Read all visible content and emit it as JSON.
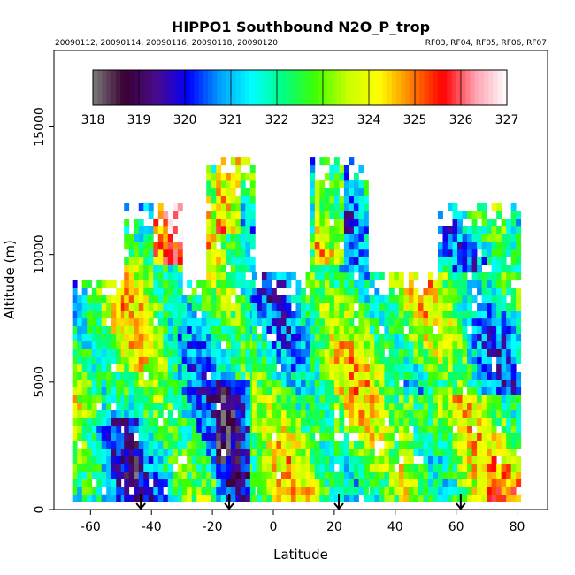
{
  "chart_data": {
    "type": "heatmap",
    "title": "HIPPO1 Southbound N2O_P_trop",
    "subtitle_left": "20090112, 20090114, 20090116, 20090118, 20090120",
    "subtitle_right": "RF03, RF04, RF05, RF06, RF07",
    "xlabel": "Latitude",
    "ylabel": "Altitude (m)",
    "xlim": [
      -72,
      90
    ],
    "ylim": [
      0,
      18000
    ],
    "x_ticks": [
      -60,
      -40,
      -20,
      0,
      20,
      40,
      60,
      80
    ],
    "y_ticks": [
      0,
      5000,
      10000,
      15000
    ],
    "colorbar": {
      "placement": "top-inside",
      "min": 318,
      "max": 327,
      "ticks": [
        318,
        319,
        320,
        321,
        322,
        323,
        324,
        325,
        326,
        327
      ],
      "colors": [
        "#7a7a7a",
        "#3a0032",
        "#4a0a8c",
        "#0000ff",
        "#00a0ff",
        "#00ffff",
        "#00ff80",
        "#40ff00",
        "#c8ff00",
        "#ffff00",
        "#ff8000",
        "#ff0000",
        "#ffa0b0",
        "#ffffff"
      ]
    },
    "profile_markers_latitude": [
      -43.5,
      -14.5,
      21.5,
      61.5
    ],
    "profiles": [
      {
        "lat_min": -66,
        "lat_max": -49,
        "alt_max": 9000
      },
      {
        "lat_min": -49,
        "lat_max": -30,
        "alt_max": 11800
      },
      {
        "lat_min": -30,
        "lat_max": -22,
        "alt_max": 9000
      },
      {
        "lat_min": -22,
        "lat_max": -7,
        "alt_max": 13800
      },
      {
        "lat_min": -7,
        "lat_max": 12,
        "alt_max": 9200
      },
      {
        "lat_min": 12,
        "lat_max": 30,
        "alt_max": 13600
      },
      {
        "lat_min": 30,
        "lat_max": 54,
        "alt_max": 9200
      },
      {
        "lat_min": 54,
        "lat_max": 80,
        "alt_max": 11800
      }
    ],
    "grid": false
  }
}
